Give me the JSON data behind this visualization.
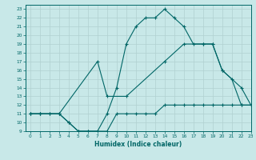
{
  "xlabel": "Humidex (Indice chaleur)",
  "bg_color": "#c8e8e8",
  "grid_color": "#b0d0d0",
  "line_color": "#006666",
  "xlim": [
    -0.5,
    23
  ],
  "ylim": [
    9,
    23.5
  ],
  "xticks": [
    0,
    1,
    2,
    3,
    4,
    5,
    6,
    7,
    8,
    9,
    10,
    11,
    12,
    13,
    14,
    15,
    16,
    17,
    18,
    19,
    20,
    21,
    22,
    23
  ],
  "yticks": [
    9,
    10,
    11,
    12,
    13,
    14,
    15,
    16,
    17,
    18,
    19,
    20,
    21,
    22,
    23
  ],
  "line1_x": [
    0,
    1,
    2,
    3,
    4,
    5,
    6,
    7,
    8,
    9,
    10,
    11,
    12,
    13,
    14,
    15,
    16,
    17,
    18,
    19,
    20,
    21,
    22,
    23
  ],
  "line1_y": [
    11,
    11,
    11,
    11,
    10,
    9,
    9,
    9,
    9,
    11,
    11,
    11,
    11,
    11,
    12,
    12,
    12,
    12,
    12,
    12,
    12,
    12,
    12,
    12
  ],
  "line2_x": [
    0,
    1,
    2,
    3,
    4,
    5,
    6,
    7,
    8,
    9,
    10,
    11,
    12,
    13,
    14,
    15,
    16,
    17,
    18,
    19,
    20,
    21,
    22,
    23
  ],
  "line2_y": [
    11,
    11,
    11,
    11,
    10,
    9,
    9,
    9,
    11,
    14,
    19,
    21,
    22,
    22,
    23,
    22,
    21,
    19,
    19,
    19,
    16,
    15,
    12,
    12
  ],
  "line3_x": [
    0,
    1,
    3,
    7,
    8,
    10,
    14,
    16,
    18,
    19,
    20,
    22,
    23
  ],
  "line3_y": [
    11,
    11,
    11,
    17,
    13,
    13,
    17,
    19,
    19,
    19,
    16,
    14,
    12
  ]
}
